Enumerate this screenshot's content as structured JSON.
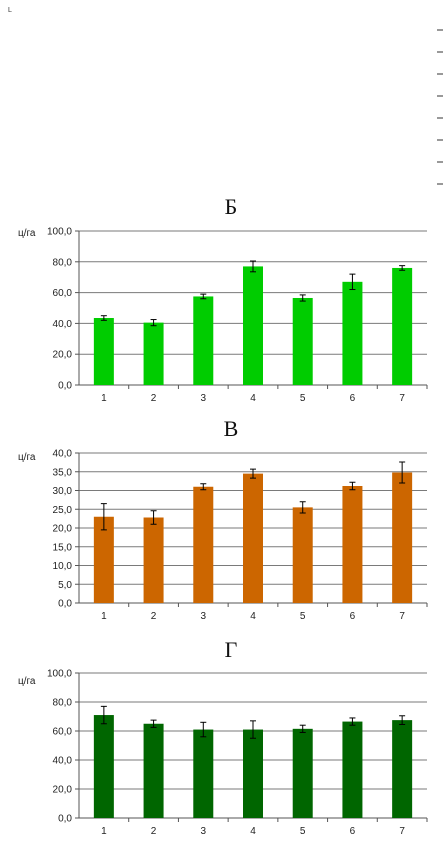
{
  "corner_mark": "L",
  "chart_data": [
    {
      "type": "bar",
      "title": "Б",
      "ylabel": "ц/га",
      "categories": [
        "1",
        "2",
        "3",
        "4",
        "5",
        "6",
        "7"
      ],
      "values": [
        43.5,
        40.5,
        57.5,
        77.0,
        56.5,
        67.0,
        76.0
      ],
      "errors": [
        1.5,
        2.0,
        1.5,
        3.5,
        2.0,
        5.0,
        1.5
      ],
      "ylim": [
        0,
        100
      ],
      "yticks": [
        "0,0",
        "20,0",
        "40,0",
        "60,0",
        "80,0",
        "100,0"
      ],
      "color": "#00cc00",
      "grid": true
    },
    {
      "type": "bar",
      "title": "В",
      "ylabel": "ц/га",
      "categories": [
        "1",
        "2",
        "3",
        "4",
        "5",
        "6",
        "7"
      ],
      "values": [
        23.0,
        22.8,
        31.0,
        34.5,
        25.5,
        31.2,
        34.8
      ],
      "errors": [
        3.5,
        1.8,
        0.8,
        1.2,
        1.5,
        1.0,
        2.8
      ],
      "ylim": [
        0,
        40
      ],
      "yticks": [
        "0,0",
        "5,0",
        "10,0",
        "15,0",
        "20,0",
        "25,0",
        "30,0",
        "35,0",
        "40,0"
      ],
      "color": "#cc6600",
      "grid": true
    },
    {
      "type": "bar",
      "title": "Г",
      "ylabel": "ц/га",
      "categories": [
        "1",
        "2",
        "3",
        "4",
        "5",
        "6",
        "7"
      ],
      "values": [
        71.0,
        65.0,
        61.0,
        61.0,
        61.5,
        66.5,
        67.5
      ],
      "errors": [
        6.0,
        2.5,
        5.0,
        6.0,
        2.5,
        2.5,
        3.0
      ],
      "ylim": [
        0,
        100
      ],
      "yticks": [
        "0,0",
        "20,0",
        "40,0",
        "60,0",
        "80,0",
        "100,0"
      ],
      "color": "#006600",
      "grid": true
    }
  ]
}
